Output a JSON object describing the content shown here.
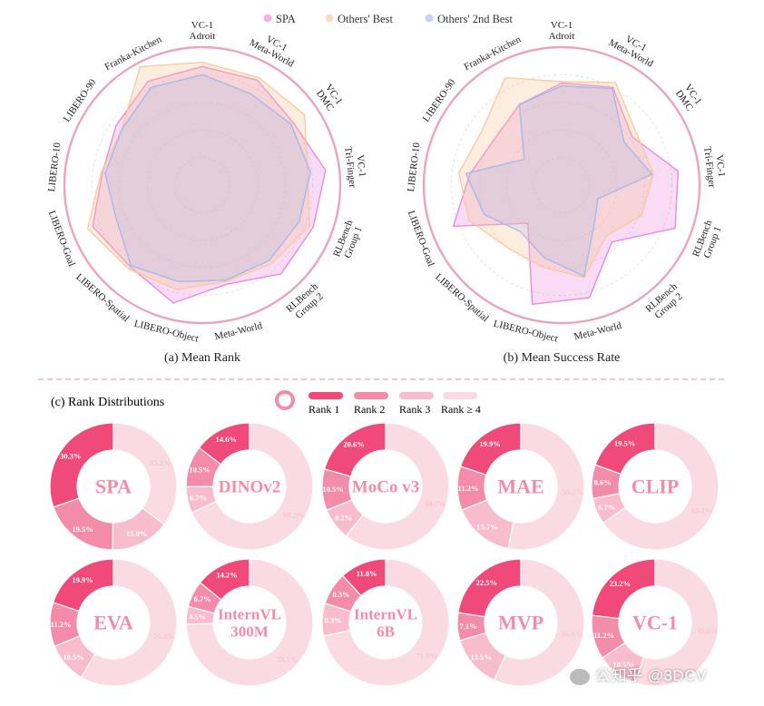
{
  "colors": {
    "spa": "#e77fd6",
    "others_best": "#f6c89b",
    "others_2nd": "#9fb6ec",
    "ring": "#e9a6b8",
    "rank1": "#ef4a79",
    "rank2": "#f28ca9",
    "rank3": "#f7bccd",
    "rank4": "#fadbe4"
  },
  "legend": {
    "spa": "SPA",
    "others_best": "Others' Best",
    "others_2nd": "Others' 2nd Best"
  },
  "rank_legend": {
    "r1": "Rank 1",
    "r2": "Rank 2",
    "r3": "Rank 3",
    "r4": "Rank ≥ 4"
  },
  "watermark": "公知乎 @3DCV",
  "chart_data": [
    {
      "type": "radar",
      "title": "(a) Mean Rank",
      "axes": [
        "VC-1\nAdroit",
        "VC-1\nMeta-World",
        "VC-1\nDMC",
        "VC-1\nTri-Finger",
        "RLBench\nGroup 1",
        "RLBench\nGroup 2",
        "Meta-World",
        "LIBERO-Object",
        "LIBERO-Spatial",
        "LIBERO-Goal",
        "LIBERO-10",
        "LIBERO-90",
        "Franka-Kitchen"
      ],
      "range": [
        0,
        1
      ],
      "series": [
        {
          "name": "SPA",
          "values": [
            0.86,
            0.86,
            0.8,
            0.9,
            0.86,
            0.86,
            0.74,
            0.88,
            0.79,
            0.85,
            0.73,
            0.76,
            0.85
          ]
        },
        {
          "name": "Others' Best",
          "values": [
            0.89,
            0.88,
            0.9,
            0.77,
            0.83,
            0.76,
            0.72,
            0.78,
            0.81,
            0.89,
            0.74,
            0.71,
            0.97
          ]
        },
        {
          "name": "Others' 2nd Best",
          "values": [
            0.8,
            0.75,
            0.78,
            0.79,
            0.75,
            0.73,
            0.71,
            0.72,
            0.78,
            0.67,
            0.71,
            0.71,
            0.8
          ]
        }
      ]
    },
    {
      "type": "radar",
      "title": "(b) Mean Success Rate",
      "axes": [
        "VC-1\nAdroit",
        "VC-1\nMeta-World",
        "VC-1\nDMC",
        "VC-1\nTri-Finger",
        "RLBench\nGroup 1",
        "RLBench\nGroup 2",
        "Meta-World",
        "LIBERO-Object",
        "LIBERO-Spatial",
        "LIBERO-Goal",
        "LIBERO-10",
        "LIBERO-90",
        "Franka-Kitchen"
      ],
      "range": [
        0,
        1
      ],
      "series": [
        {
          "name": "SPA",
          "values": [
            0.74,
            0.8,
            0.62,
            0.85,
            0.88,
            0.55,
            0.84,
            0.89,
            0.37,
            0.84,
            0.67,
            0.59,
            0.66
          ]
        },
        {
          "name": "Others' Best",
          "values": [
            0.75,
            0.84,
            0.66,
            0.67,
            0.62,
            0.49,
            0.69,
            0.61,
            0.6,
            0.72,
            0.75,
            0.7,
            0.88
          ]
        },
        {
          "name": "Others' 2nd Best",
          "values": [
            0.72,
            0.79,
            0.55,
            0.66,
            0.28,
            0.36,
            0.68,
            0.54,
            0.45,
            0.6,
            0.7,
            0.33,
            0.66
          ]
        }
      ]
    },
    {
      "type": "pie",
      "title": "(c) Rank Distributions",
      "legend": [
        "Rank 1",
        "Rank 2",
        "Rank 3",
        "Rank ≥ 4"
      ],
      "models": [
        {
          "name": "SPA",
          "values": [
            30.3,
            19.5,
            15.0,
            35.2
          ],
          "labels": [
            "30.3%",
            "19.5%",
            "15.0%",
            "35.2%"
          ]
        },
        {
          "name": "DINOv2",
          "values": [
            14.6,
            10.5,
            6.7,
            68.2
          ],
          "labels": [
            "14.6%",
            "10.5%",
            "6.7%",
            "68.2%"
          ]
        },
        {
          "name": "MoCo v3",
          "values": [
            20.6,
            10.5,
            8.2,
            60.7
          ],
          "labels": [
            "20.6%",
            "10.5%",
            "8.2%",
            "60.7%"
          ]
        },
        {
          "name": "MAE",
          "values": [
            19.9,
            11.2,
            15.7,
            53.2
          ],
          "labels": [
            "19.9%",
            "11.2%",
            "15.7%",
            "53.2%"
          ]
        },
        {
          "name": "CLIP",
          "values": [
            19.5,
            8.6,
            6.7,
            65.2
          ],
          "labels": [
            "19.5%",
            "8.6%",
            "6.7%",
            "65.2%"
          ]
        },
        {
          "name": "EVA",
          "values": [
            19.9,
            11.2,
            10.5,
            58.4
          ],
          "labels": [
            "19.9%",
            "11.2%",
            "10.5%",
            "58.4%"
          ]
        },
        {
          "name": "InternVL\n300M",
          "values": [
            14.2,
            6.7,
            4.5,
            74.5
          ],
          "labels": [
            "14.2%",
            "6.7%",
            "4.5%",
            "74.5%"
          ]
        },
        {
          "name": "InternVL\n6B",
          "values": [
            11.8,
            8.3,
            8.3,
            71.5
          ],
          "labels": [
            "11.8%",
            "8.3%",
            "8.3%",
            "71.5%"
          ]
        },
        {
          "name": "MVP",
          "values": [
            22.5,
            7.1,
            13.5,
            56.9
          ],
          "labels": [
            "22.5%",
            "7.1%",
            "13.5%",
            "56.9%"
          ]
        },
        {
          "name": "VC-1",
          "values": [
            23.2,
            11.2,
            10.5,
            55.0
          ],
          "labels": [
            "23.2%",
            "11.2%",
            "10.5%",
            "55.0%"
          ]
        }
      ]
    }
  ]
}
